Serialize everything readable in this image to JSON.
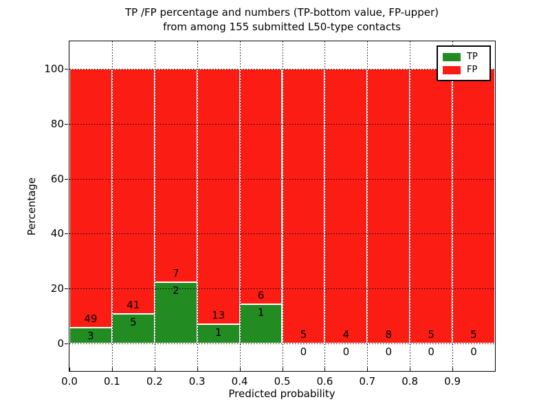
{
  "title": {
    "line1": "TP /FP percentage and numbers (TP-bottom value, FP-upper)",
    "line2": "from among 155 submitted L50-type contacts"
  },
  "axes": {
    "xlabel": "Predicted probability",
    "ylabel": "Percentage"
  },
  "legend": {
    "items": [
      {
        "label": "TP",
        "color": "#228b22"
      },
      {
        "label": "FP",
        "color": "#fb1d13"
      }
    ]
  },
  "chart_data": {
    "type": "bar",
    "stacked": true,
    "normalized": "each bin stacks to 100%",
    "title": "TP /FP percentage and numbers (TP-bottom value, FP-upper) from among 155 submitted L50-type contacts",
    "xlabel": "Predicted probability",
    "ylabel": "Percentage",
    "total_contacts": 155,
    "bin_edges": [
      0.0,
      0.1,
      0.2,
      0.3,
      0.4,
      0.5,
      0.6,
      0.7,
      0.8,
      0.9,
      1.0
    ],
    "categories": [
      "0.0-0.1",
      "0.1-0.2",
      "0.2-0.3",
      "0.3-0.4",
      "0.4-0.5",
      "0.5-0.6",
      "0.6-0.7",
      "0.7-0.8",
      "0.8-0.9",
      "0.9-1.0"
    ],
    "series": [
      {
        "name": "TP",
        "color": "#228b22",
        "counts": [
          3,
          5,
          2,
          1,
          1,
          0,
          0,
          0,
          0,
          0
        ]
      },
      {
        "name": "FP",
        "color": "#fb1d13",
        "counts": [
          49,
          41,
          7,
          13,
          6,
          5,
          4,
          8,
          5,
          5
        ]
      }
    ],
    "tp_percent": [
      5.77,
      10.87,
      22.22,
      7.14,
      14.29,
      0,
      0,
      0,
      0,
      0
    ],
    "xlim": [
      0.0,
      1.0
    ],
    "ylim": [
      -10,
      110
    ],
    "xticks": [
      "0.0",
      "0.1",
      "0.2",
      "0.3",
      "0.4",
      "0.5",
      "0.6",
      "0.7",
      "0.8",
      "0.9"
    ],
    "yticks": [
      0,
      20,
      40,
      60,
      80,
      100
    ],
    "grid": "dotted black, both axes",
    "legend_position": "upper right"
  }
}
